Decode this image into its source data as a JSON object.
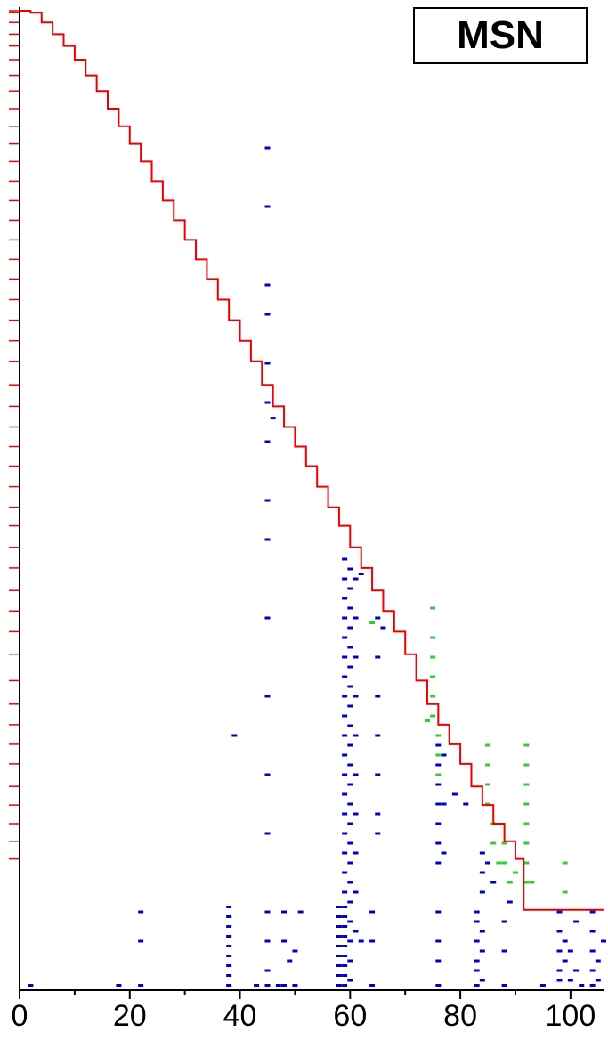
{
  "chart_data": {
    "type": "scatter",
    "title": "",
    "xlabel": "",
    "ylabel": "",
    "legend": {
      "label": "MSN",
      "placement": "top-right"
    },
    "xlim": [
      0,
      106
    ],
    "ylim": [
      0,
      100
    ],
    "x_ticks": [
      0,
      20,
      40,
      60,
      80,
      100
    ],
    "y_ticks": [],
    "grid": false,
    "colors": {
      "frontier": "#ee0000",
      "blue": "#0000cc",
      "green": "#33cc33",
      "ticks": "#ee0000",
      "axis": "#000000"
    },
    "series": [
      {
        "type": "step-line",
        "color": "#ee0000",
        "points": [
          [
            0,
            100
          ],
          [
            2,
            99.8
          ],
          [
            4,
            98.8
          ],
          [
            6,
            97.6
          ],
          [
            8,
            96.4
          ],
          [
            10,
            95
          ],
          [
            12,
            93.4
          ],
          [
            14,
            91.8
          ],
          [
            16,
            90
          ],
          [
            18,
            88.2
          ],
          [
            20,
            86.4
          ],
          [
            22,
            84.6
          ],
          [
            24,
            82.6
          ],
          [
            26,
            80.6
          ],
          [
            28,
            78.6
          ],
          [
            30,
            76.6
          ],
          [
            32,
            74.6
          ],
          [
            34,
            72.6
          ],
          [
            36,
            70.5
          ],
          [
            38,
            68.4
          ],
          [
            40,
            66.3
          ],
          [
            42,
            64.2
          ],
          [
            44,
            61.8
          ],
          [
            46,
            59.6
          ],
          [
            48,
            57.5
          ],
          [
            50,
            55.5
          ],
          [
            52,
            53.5
          ],
          [
            54,
            51.4
          ],
          [
            56,
            49.3
          ],
          [
            58,
            47.4
          ],
          [
            60,
            45.2
          ],
          [
            62,
            43.1
          ],
          [
            64,
            40.8
          ],
          [
            66,
            38.7
          ],
          [
            68,
            36.6
          ],
          [
            70,
            34.3
          ],
          [
            72,
            31.6
          ],
          [
            74,
            29.2
          ],
          [
            76,
            27.1
          ],
          [
            78,
            25.1
          ],
          [
            80,
            23.1
          ],
          [
            82,
            20.8
          ],
          [
            84,
            18.9
          ],
          [
            86,
            17
          ],
          [
            88,
            15.2
          ],
          [
            90,
            13.4
          ],
          [
            91.5,
            8.2
          ],
          [
            106,
            8.2
          ]
        ]
      },
      {
        "type": "points",
        "color": "#0000cc",
        "points": [
          [
            2,
            0.5
          ],
          [
            18,
            0.5
          ],
          [
            22,
            0.5
          ],
          [
            22,
            5
          ],
          [
            22,
            8
          ],
          [
            38,
            0.5
          ],
          [
            38,
            1.5
          ],
          [
            38,
            2.5
          ],
          [
            38,
            3.5
          ],
          [
            38,
            4.5
          ],
          [
            38,
            5.5
          ],
          [
            38,
            6.5
          ],
          [
            38,
            7.5
          ],
          [
            38,
            8.5
          ],
          [
            39,
            26
          ],
          [
            43,
            0.5
          ],
          [
            45,
            0.5
          ],
          [
            45,
            2
          ],
          [
            45,
            5
          ],
          [
            45,
            8
          ],
          [
            45,
            16
          ],
          [
            45,
            22
          ],
          [
            45,
            30
          ],
          [
            45,
            38
          ],
          [
            45,
            46
          ],
          [
            45,
            50
          ],
          [
            45,
            56
          ],
          [
            45,
            60
          ],
          [
            45,
            64
          ],
          [
            45,
            69
          ],
          [
            45,
            72
          ],
          [
            45,
            80
          ],
          [
            45,
            86
          ],
          [
            46,
            58.4
          ],
          [
            47,
            0.5
          ],
          [
            48,
            0.5
          ],
          [
            48,
            5
          ],
          [
            48,
            8
          ],
          [
            49,
            3
          ],
          [
            50,
            0.5
          ],
          [
            50,
            4
          ],
          [
            51,
            8
          ],
          [
            58,
            0.5
          ],
          [
            58,
            1.5
          ],
          [
            58,
            2.5
          ],
          [
            58,
            3.5
          ],
          [
            58,
            4.5
          ],
          [
            58,
            5.5
          ],
          [
            58,
            6.5
          ],
          [
            58,
            7.5
          ],
          [
            58,
            8.5
          ],
          [
            59,
            0.5
          ],
          [
            59,
            1.5
          ],
          [
            59,
            2.5
          ],
          [
            59,
            3.5
          ],
          [
            59,
            4.5
          ],
          [
            59,
            5.5
          ],
          [
            59,
            6.5
          ],
          [
            59,
            7.5
          ],
          [
            59,
            8.5
          ],
          [
            59,
            10
          ],
          [
            59,
            12
          ],
          [
            59,
            14
          ],
          [
            59,
            16
          ],
          [
            59,
            18
          ],
          [
            59,
            20
          ],
          [
            59,
            22
          ],
          [
            59,
            24
          ],
          [
            59,
            26
          ],
          [
            59,
            28
          ],
          [
            59,
            30
          ],
          [
            59,
            32
          ],
          [
            59,
            34
          ],
          [
            59,
            36
          ],
          [
            59,
            38
          ],
          [
            59,
            40
          ],
          [
            59,
            42
          ],
          [
            59,
            44
          ],
          [
            60,
            1
          ],
          [
            60,
            3
          ],
          [
            60,
            5
          ],
          [
            60,
            7
          ],
          [
            60,
            9
          ],
          [
            60,
            11
          ],
          [
            60,
            13
          ],
          [
            60,
            15
          ],
          [
            60,
            17
          ],
          [
            60,
            19
          ],
          [
            60,
            21
          ],
          [
            60,
            23
          ],
          [
            60,
            25
          ],
          [
            60,
            27
          ],
          [
            60,
            29
          ],
          [
            60,
            31
          ],
          [
            60,
            33
          ],
          [
            60,
            35
          ],
          [
            60,
            37
          ],
          [
            60,
            39
          ],
          [
            60,
            41
          ],
          [
            60,
            43
          ],
          [
            61,
            6
          ],
          [
            61,
            10
          ],
          [
            61,
            14
          ],
          [
            61,
            18
          ],
          [
            61,
            22
          ],
          [
            61,
            26
          ],
          [
            61,
            30
          ],
          [
            61,
            34
          ],
          [
            61,
            38
          ],
          [
            61,
            42
          ],
          [
            62,
            42.5
          ],
          [
            62,
            5
          ],
          [
            64,
            0.5
          ],
          [
            64,
            8
          ],
          [
            64,
            5
          ],
          [
            65,
            16
          ],
          [
            65,
            18
          ],
          [
            65,
            22
          ],
          [
            65,
            26
          ],
          [
            65,
            30
          ],
          [
            65,
            34
          ],
          [
            65,
            38
          ],
          [
            66,
            37
          ],
          [
            76,
            0.5
          ],
          [
            76,
            3
          ],
          [
            76,
            5
          ],
          [
            76,
            8
          ],
          [
            76,
            13
          ],
          [
            76,
            15
          ],
          [
            76,
            17
          ],
          [
            76,
            19
          ],
          [
            76,
            21
          ],
          [
            76,
            23
          ],
          [
            76,
            25
          ],
          [
            77,
            14
          ],
          [
            77,
            19
          ],
          [
            77,
            24
          ],
          [
            79,
            20
          ],
          [
            81,
            19
          ],
          [
            83,
            0.5
          ],
          [
            83,
            2
          ],
          [
            83,
            3
          ],
          [
            83,
            5
          ],
          [
            83,
            7
          ],
          [
            83,
            8
          ],
          [
            84,
            1
          ],
          [
            84,
            4
          ],
          [
            84,
            6
          ],
          [
            84,
            10
          ],
          [
            84,
            12
          ],
          [
            84,
            14
          ],
          [
            85,
            13
          ],
          [
            86,
            11
          ],
          [
            88,
            0.5
          ],
          [
            88,
            4
          ],
          [
            88,
            7
          ],
          [
            89,
            9
          ],
          [
            95,
            0.5
          ],
          [
            98,
            1
          ],
          [
            98,
            2
          ],
          [
            98,
            4
          ],
          [
            98,
            6
          ],
          [
            98,
            8
          ],
          [
            99,
            3
          ],
          [
            99,
            5
          ],
          [
            100,
            1
          ],
          [
            100,
            4
          ],
          [
            101,
            2
          ],
          [
            101,
            7
          ],
          [
            102,
            0.5
          ],
          [
            104,
            0.5
          ],
          [
            104,
            2
          ],
          [
            104,
            4
          ],
          [
            104,
            6
          ],
          [
            104,
            8
          ],
          [
            105,
            1
          ],
          [
            105,
            3
          ],
          [
            106,
            5
          ]
        ]
      },
      {
        "type": "points",
        "color": "#33cc33",
        "points": [
          [
            64,
            37.5
          ],
          [
            75,
            39
          ],
          [
            75,
            36
          ],
          [
            75,
            34
          ],
          [
            75,
            32
          ],
          [
            75,
            30
          ],
          [
            75,
            28
          ],
          [
            74,
            27.5
          ],
          [
            76,
            26
          ],
          [
            76,
            24
          ],
          [
            76,
            22
          ],
          [
            85,
            25
          ],
          [
            85,
            23
          ],
          [
            85,
            21
          ],
          [
            85,
            19
          ],
          [
            86,
            17
          ],
          [
            86,
            15
          ],
          [
            87,
            13
          ],
          [
            88,
            15
          ],
          [
            88,
            13
          ],
          [
            89,
            11
          ],
          [
            90,
            12
          ],
          [
            92,
            25
          ],
          [
            92,
            23
          ],
          [
            92,
            21
          ],
          [
            92,
            19
          ],
          [
            92,
            17
          ],
          [
            92,
            15
          ],
          [
            92,
            13
          ],
          [
            92,
            11
          ],
          [
            93,
            11
          ],
          [
            99,
            13
          ],
          [
            99,
            10
          ]
        ]
      }
    ]
  }
}
